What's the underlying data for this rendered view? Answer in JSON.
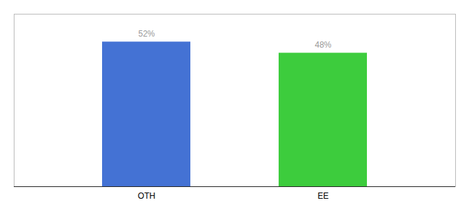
{
  "chart_data": {
    "type": "bar",
    "categories": [
      "OTH",
      "EE"
    ],
    "values": [
      52,
      48
    ],
    "value_labels": [
      "52%",
      "48%"
    ],
    "colors": [
      "#4472d4",
      "#3dcc3d"
    ],
    "ylim": [
      0,
      62
    ],
    "data_labels": true,
    "tick_labels": "x",
    "grid": false
  }
}
